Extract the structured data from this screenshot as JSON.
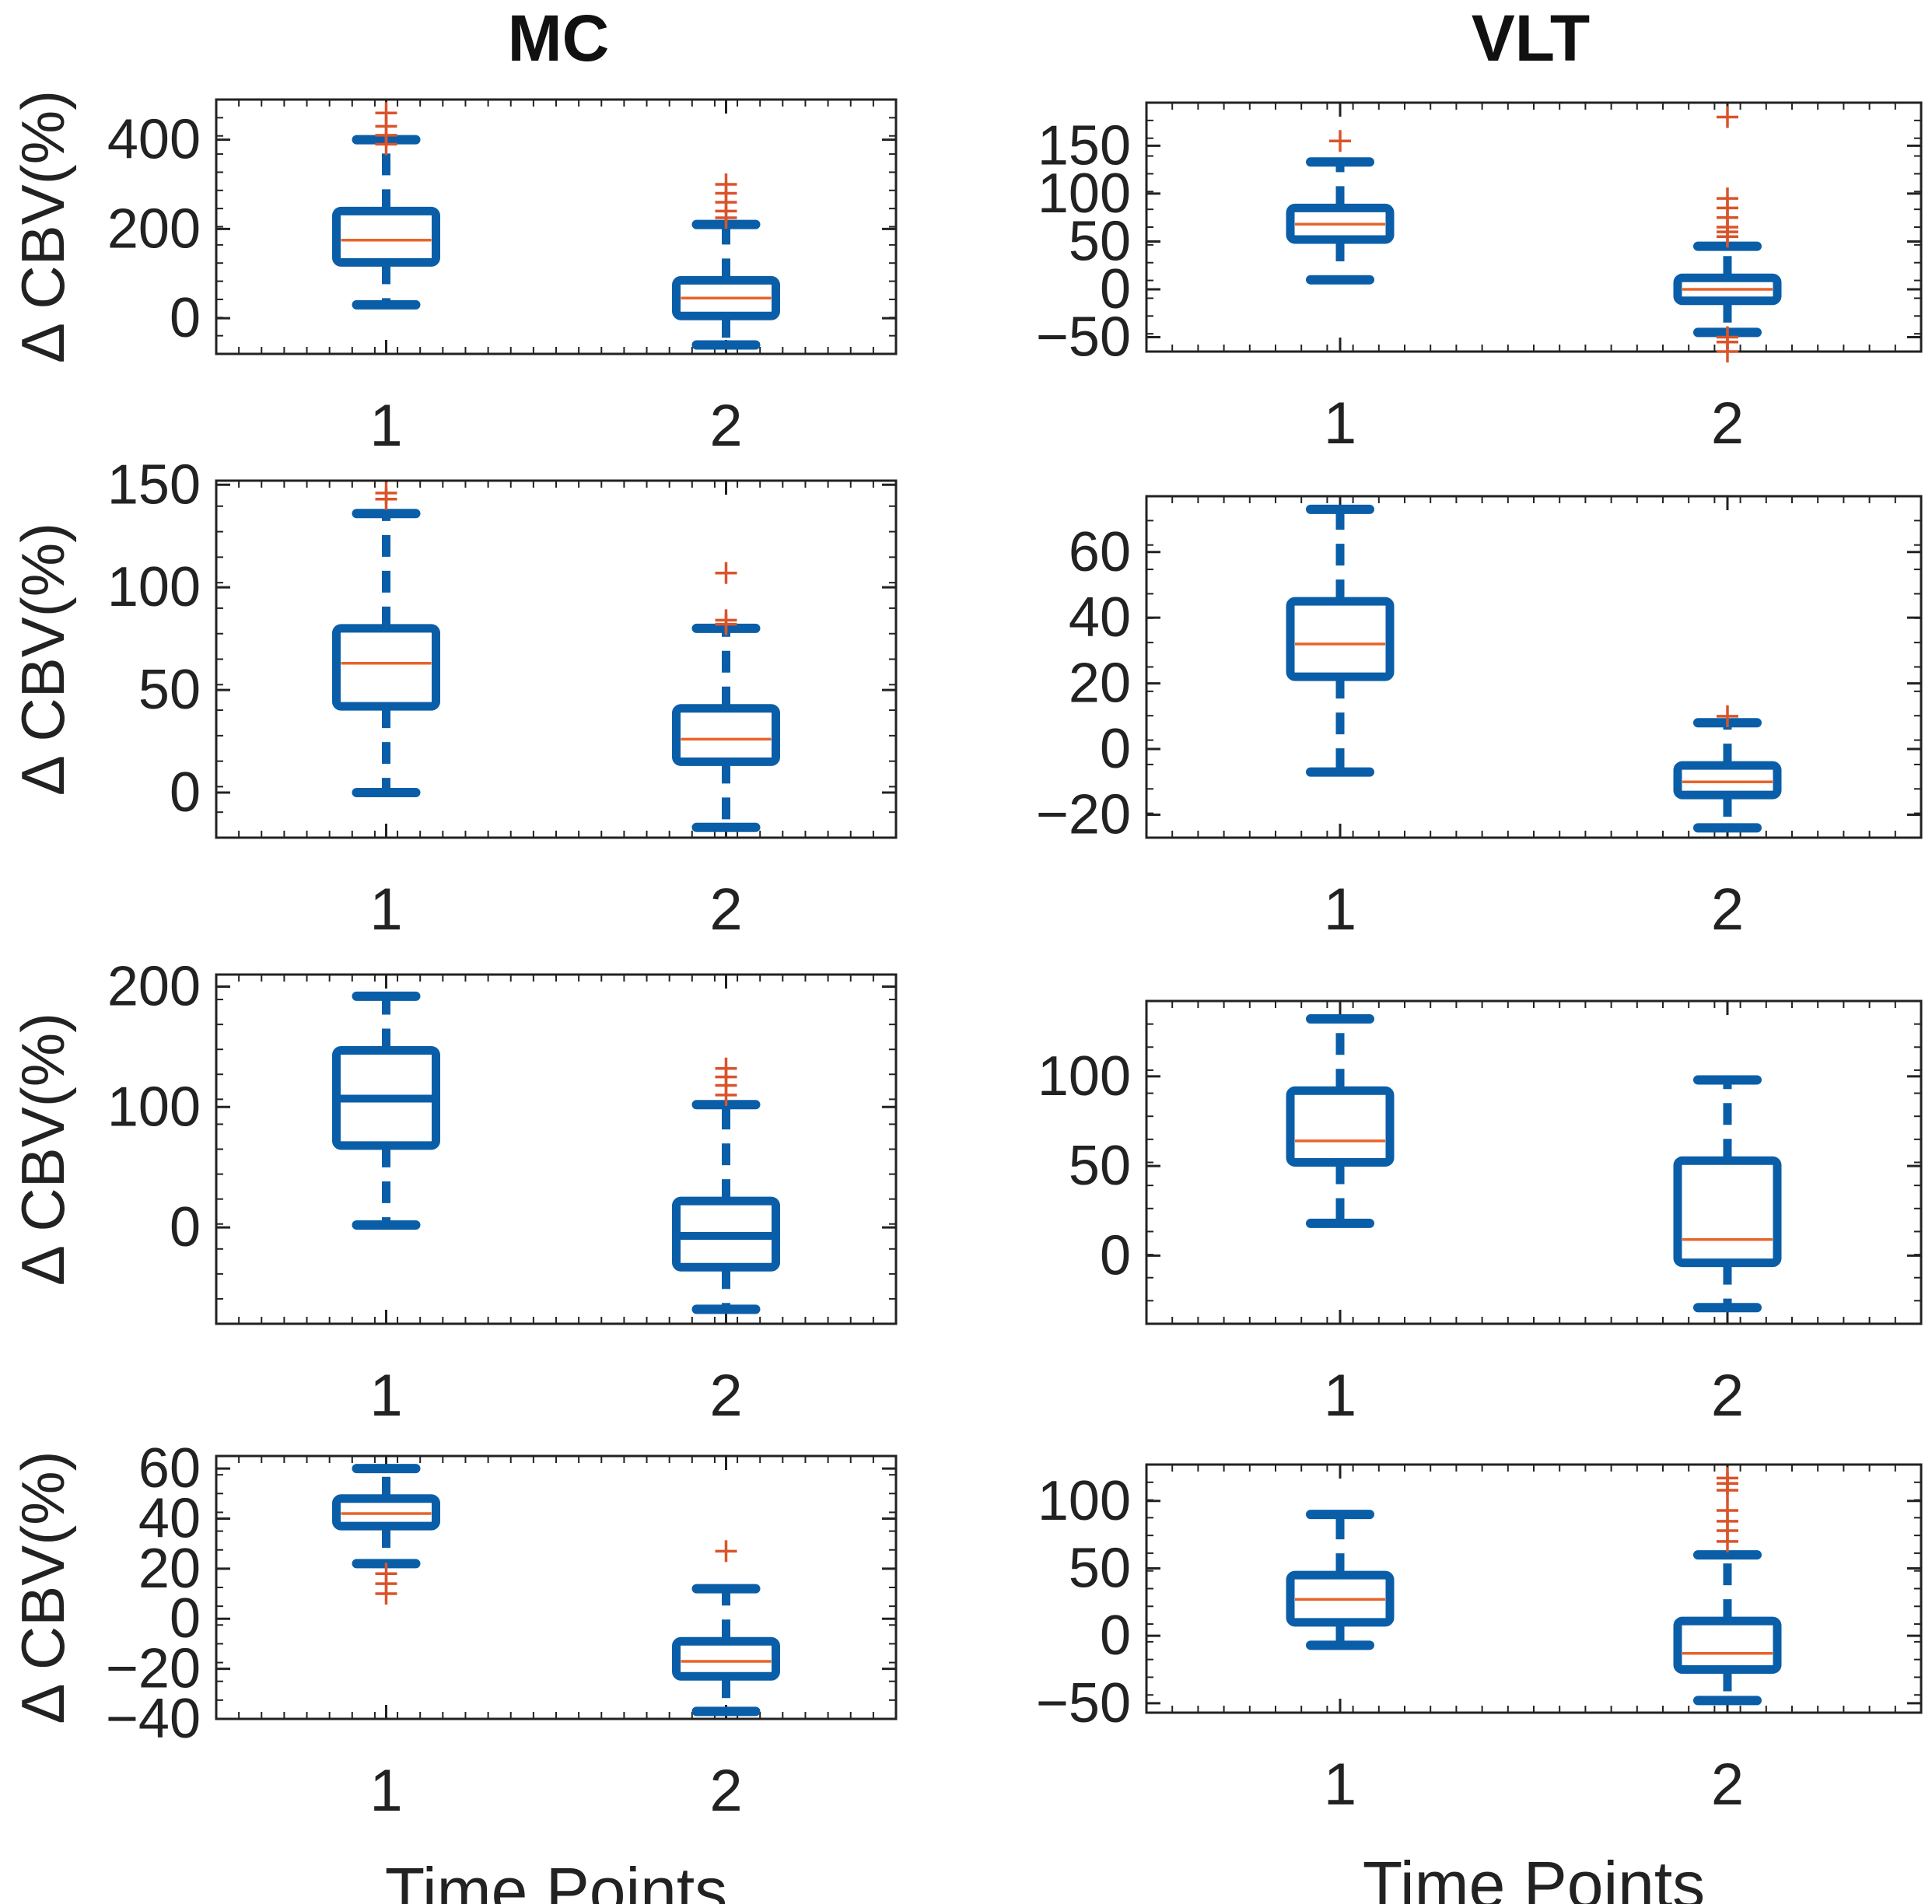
{
  "figure": {
    "columns": [
      {
        "title": "MC"
      },
      {
        "title": "VLT"
      }
    ],
    "ylabel": "Δ CBV(%)",
    "xlabel": "Time Points"
  },
  "colors": {
    "box": "#0a5ea8",
    "median": "#e8632a",
    "outlier": "#d9542b",
    "axis": "#222222",
    "text": "#222222"
  },
  "chart_data": [
    {
      "type": "box",
      "column": "MC",
      "row": 1,
      "ylabel": "Δ CBV(%)",
      "xlabel": "",
      "ylim": [
        -80,
        490
      ],
      "yticks": [
        0,
        200,
        400
      ],
      "ytick_labels": [
        "0",
        "200",
        "400"
      ],
      "xlim": [
        0.5,
        2.5
      ],
      "xticks": [
        1,
        2
      ],
      "xtick_labels": [
        "1",
        "2"
      ],
      "boxes": [
        {
          "x": 1,
          "whisker_low": 30,
          "q1": 125,
          "median": 175,
          "q3": 240,
          "whisker_high": 400,
          "outliers": [
            390,
            410,
            430,
            460
          ],
          "median_style": "thin"
        },
        {
          "x": 2,
          "whisker_low": -60,
          "q1": 5,
          "median": 45,
          "q3": 85,
          "whisker_high": 210,
          "outliers": [
            225,
            240,
            260,
            280,
            300
          ],
          "median_style": "thin"
        }
      ]
    },
    {
      "type": "box",
      "column": "VLT",
      "row": 1,
      "ylabel": "",
      "xlabel": "",
      "ylim": [
        -65,
        195
      ],
      "yticks": [
        -50,
        0,
        50,
        100,
        150
      ],
      "ytick_labels": [
        "−50",
        "0",
        "50",
        "100",
        "150"
      ],
      "xlim": [
        0.5,
        2.5
      ],
      "xticks": [
        1,
        2
      ],
      "xtick_labels": [
        "1",
        "2"
      ],
      "boxes": [
        {
          "x": 1,
          "whisker_low": 10,
          "q1": 52,
          "median": 68,
          "q3": 85,
          "whisker_high": 133,
          "outliers": [
            155
          ],
          "median_style": "thin"
        },
        {
          "x": 2,
          "whisker_low": -45,
          "q1": -12,
          "median": 0,
          "q3": 12,
          "whisker_high": 45,
          "outliers": [
            -50,
            -55,
            -65,
            55,
            60,
            65,
            75,
            85,
            95,
            180
          ],
          "median_style": "thin"
        }
      ]
    },
    {
      "type": "box",
      "column": "MC",
      "row": 2,
      "ylabel": "Δ CBV(%)",
      "xlabel": "",
      "ylim": [
        -22,
        152
      ],
      "yticks": [
        0,
        50,
        100,
        150
      ],
      "ytick_labels": [
        "0",
        "50",
        "100",
        "150"
      ],
      "xlim": [
        0.5,
        2.5
      ],
      "xticks": [
        1,
        2
      ],
      "xtick_labels": [
        "1",
        "2"
      ],
      "boxes": [
        {
          "x": 1,
          "whisker_low": 0,
          "q1": 42,
          "median": 63,
          "q3": 80,
          "whisker_high": 136,
          "outliers": [
            143,
            146
          ],
          "median_style": "thin"
        },
        {
          "x": 2,
          "whisker_low": -17,
          "q1": 15,
          "median": 26,
          "q3": 41,
          "whisker_high": 80,
          "outliers": [
            82,
            84,
            107
          ],
          "median_style": "thin"
        }
      ]
    },
    {
      "type": "box",
      "column": "VLT",
      "row": 2,
      "ylabel": "",
      "xlabel": "",
      "ylim": [
        -27,
        77
      ],
      "yticks": [
        -20,
        0,
        20,
        40,
        60
      ],
      "ytick_labels": [
        "−20",
        "0",
        "20",
        "40",
        "60"
      ],
      "xlim": [
        0.5,
        2.5
      ],
      "xticks": [
        1,
        2
      ],
      "xtick_labels": [
        "1",
        "2"
      ],
      "boxes": [
        {
          "x": 1,
          "whisker_low": -7,
          "q1": 22,
          "median": 32,
          "q3": 45,
          "whisker_high": 73,
          "outliers": [],
          "median_style": "thin"
        },
        {
          "x": 2,
          "whisker_low": -24,
          "q1": -14,
          "median": -10,
          "q3": -5,
          "whisker_high": 8,
          "outliers": [
            10
          ],
          "median_style": "thin"
        }
      ]
    },
    {
      "type": "box",
      "column": "MC",
      "row": 3,
      "ylabel": "Δ CBV(%)",
      "xlabel": "",
      "ylim": [
        -80,
        210
      ],
      "yticks": [
        0,
        100,
        200
      ],
      "ytick_labels": [
        "0",
        "100",
        "200"
      ],
      "xlim": [
        0.5,
        2.5
      ],
      "xticks": [
        1,
        2
      ],
      "xtick_labels": [
        "1",
        "2"
      ],
      "boxes": [
        {
          "x": 1,
          "whisker_low": 2,
          "q1": 68,
          "median": 107,
          "q3": 147,
          "whisker_high": 192,
          "outliers": [],
          "median_style": "thick"
        },
        {
          "x": 2,
          "whisker_low": -68,
          "q1": -33,
          "median": -7,
          "q3": 22,
          "whisker_high": 102,
          "outliers": [
            110,
            118,
            125,
            132
          ],
          "median_style": "thick"
        }
      ]
    },
    {
      "type": "box",
      "column": "VLT",
      "row": 3,
      "ylabel": "",
      "xlabel": "",
      "ylim": [
        -38,
        142
      ],
      "yticks": [
        0,
        50,
        100
      ],
      "ytick_labels": [
        "0",
        "50",
        "100"
      ],
      "xlim": [
        0.5,
        2.5
      ],
      "xticks": [
        1,
        2
      ],
      "xtick_labels": [
        "1",
        "2"
      ],
      "boxes": [
        {
          "x": 1,
          "whisker_low": 18,
          "q1": 52,
          "median": 64,
          "q3": 92,
          "whisker_high": 132,
          "outliers": [],
          "median_style": "thin"
        },
        {
          "x": 2,
          "whisker_low": -29,
          "q1": -4,
          "median": 9,
          "q3": 53,
          "whisker_high": 98,
          "outliers": [],
          "median_style": "thin"
        }
      ]
    },
    {
      "type": "box",
      "column": "MC",
      "row": 4,
      "ylabel": "Δ CBV(%)",
      "xlabel": "Time Points",
      "ylim": [
        -40,
        65
      ],
      "yticks": [
        -40,
        -20,
        0,
        20,
        40,
        60
      ],
      "ytick_labels": [
        "−40",
        "−20",
        "0",
        "20",
        "40",
        "60"
      ],
      "xlim": [
        0.5,
        2.5
      ],
      "xticks": [
        1,
        2
      ],
      "xtick_labels": [
        "1",
        "2"
      ],
      "boxes": [
        {
          "x": 1,
          "whisker_low": 22,
          "q1": 37,
          "median": 42,
          "q3": 48,
          "whisker_high": 60,
          "outliers": [
            10,
            14,
            18
          ],
          "median_style": "thin"
        },
        {
          "x": 2,
          "whisker_low": -37,
          "q1": -23,
          "median": -17,
          "q3": -9,
          "whisker_high": 12,
          "outliers": [
            27
          ],
          "median_style": "thin"
        }
      ]
    },
    {
      "type": "box",
      "column": "VLT",
      "row": 4,
      "ylabel": "",
      "xlabel": "Time Points",
      "ylim": [
        -57,
        127
      ],
      "yticks": [
        -50,
        0,
        50,
        100
      ],
      "ytick_labels": [
        "−50",
        "0",
        "50",
        "100"
      ],
      "xlim": [
        0.5,
        2.5
      ],
      "xticks": [
        1,
        2
      ],
      "xtick_labels": [
        "1",
        "2"
      ],
      "boxes": [
        {
          "x": 1,
          "whisker_low": -7,
          "q1": 10,
          "median": 27,
          "q3": 45,
          "whisker_high": 90,
          "outliers": [],
          "median_style": "thin"
        },
        {
          "x": 2,
          "whisker_low": -48,
          "q1": -25,
          "median": -13,
          "q3": 11,
          "whisker_high": 60,
          "outliers": [
            70,
            78,
            85,
            93,
            108,
            113,
            117
          ],
          "median_style": "thin"
        }
      ]
    }
  ]
}
